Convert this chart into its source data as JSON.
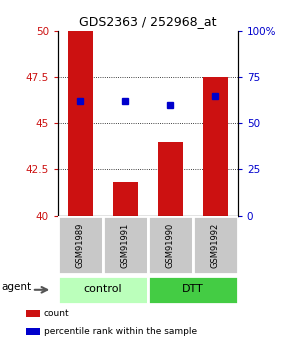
{
  "title": "GDS2363 / 252968_at",
  "samples": [
    "GSM91989",
    "GSM91991",
    "GSM91990",
    "GSM91992"
  ],
  "bar_values": [
    50.0,
    41.8,
    44.0,
    47.5
  ],
  "percentile_values": [
    46.2,
    46.2,
    46.0,
    46.5
  ],
  "bar_color": "#cc1111",
  "dot_color": "#0000cc",
  "ylim_left": [
    40,
    50
  ],
  "ylim_right": [
    0,
    100
  ],
  "yticks_left": [
    40,
    42.5,
    45,
    47.5,
    50
  ],
  "yticks_right": [
    0,
    25,
    50,
    75,
    100
  ],
  "ytick_labels_left": [
    "40",
    "42.5",
    "45",
    "47.5",
    "50"
  ],
  "ytick_labels_right": [
    "0",
    "25",
    "50",
    "75",
    "100%"
  ],
  "groups": [
    {
      "label": "control",
      "indices": [
        0,
        1
      ],
      "color": "#bbffbb"
    },
    {
      "label": "DTT",
      "indices": [
        2,
        3
      ],
      "color": "#44cc44"
    }
  ],
  "agent_label": "agent",
  "legend_items": [
    {
      "label": "count",
      "color": "#cc1111"
    },
    {
      "label": "percentile rank within the sample",
      "color": "#0000cc"
    }
  ],
  "bar_width": 0.55,
  "sample_box_color": "#c8c8c8",
  "figure_bg": "#ffffff",
  "grid_dotted_at": [
    42.5,
    45,
    47.5
  ]
}
